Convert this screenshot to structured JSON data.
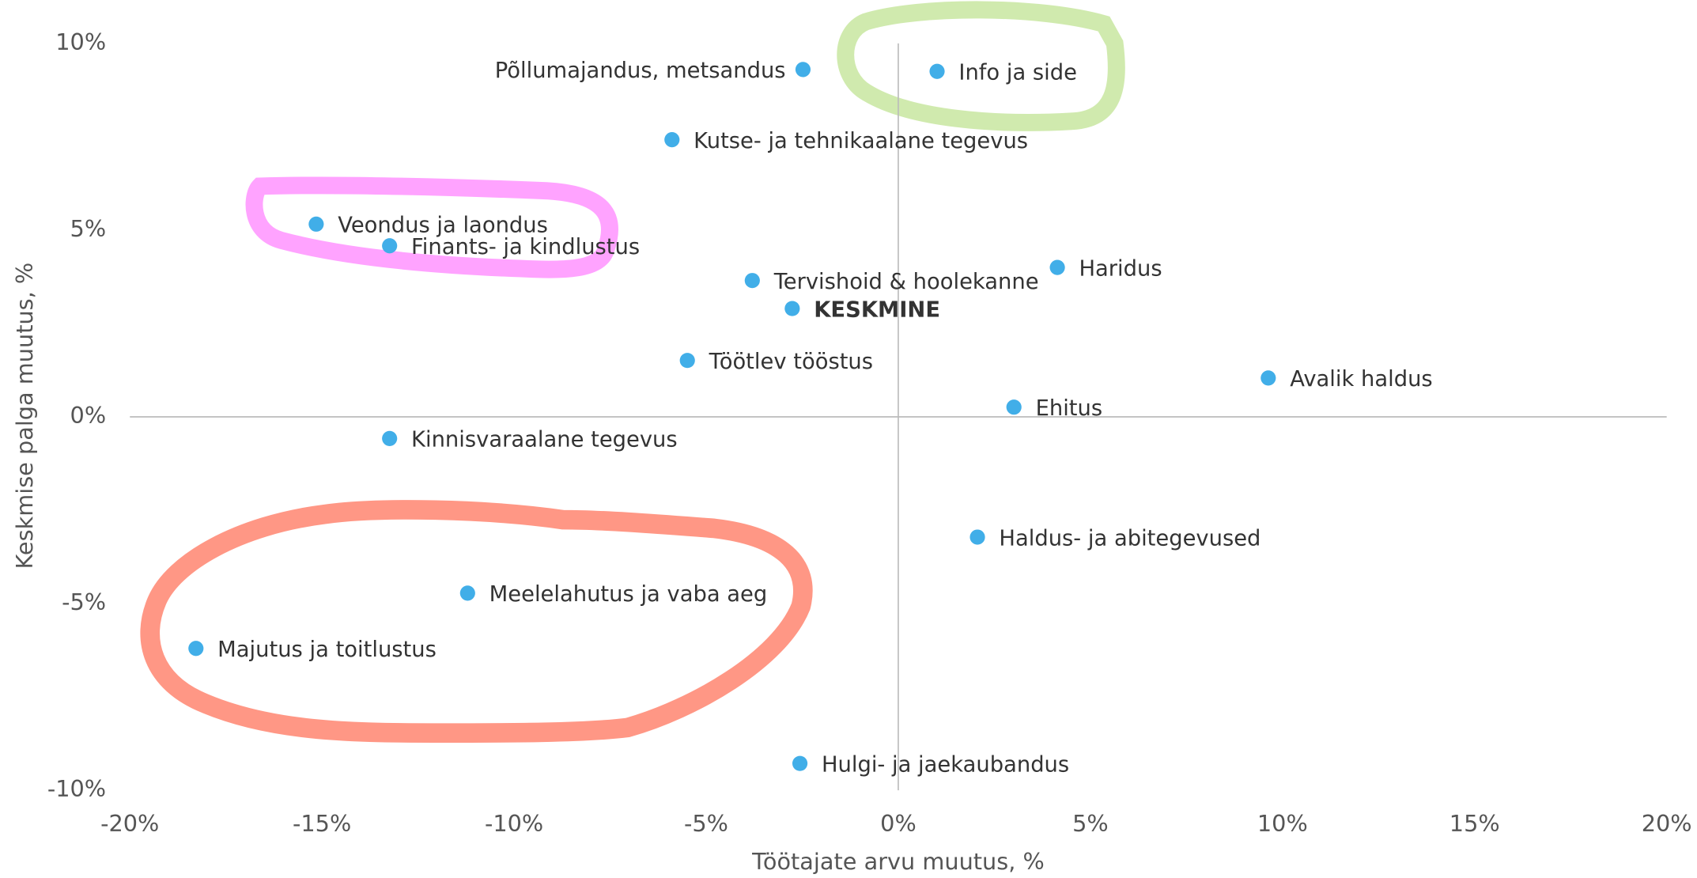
{
  "chart_data": {
    "type": "scatter",
    "xlabel": "Töötajate arvu muutus, %",
    "ylabel": "Keskmise palga muutus, %",
    "labels": [
      "Põllumajandus, metsandus",
      "Info ja side",
      "Kutse- ja tehnikaalane tegevus",
      "Veondus ja laondus",
      "Finants- ja kindlustus",
      "Tervishoid & hoolekanne",
      "Haridus",
      "KESKMINE",
      "Töötlev tööstus",
      "Avalik haldus",
      "Ehitus",
      "Kinnisvaraalane tegevus",
      "Haldus- ja abitegevused",
      "Meelelahutus ja vaba aeg",
      "Majutus ja toitlustus",
      "Hulgi- ja jaekaubandus"
    ],
    "x": [
      -2.48,
      1.01,
      -5.89,
      -15.15,
      -13.24,
      -3.8,
      4.14,
      -2.76,
      -5.49,
      9.63,
      3.01,
      -13.24,
      2.06,
      -11.21,
      -18.28,
      -2.56
    ],
    "values": [
      9.3,
      9.25,
      7.42,
      5.16,
      4.58,
      3.65,
      4.0,
      2.9,
      1.51,
      1.04,
      0.26,
      -0.58,
      -3.22,
      -4.72,
      -6.2,
      -9.28
    ],
    "highlight": 7,
    "color": "#41aee8",
    "xlim": [
      -20,
      20
    ],
    "xticks": [
      {
        "value": -20,
        "label": "-20%"
      },
      {
        "value": -15,
        "label": "-15%"
      },
      {
        "value": -10,
        "label": "-10%"
      },
      {
        "value": -5,
        "label": "-5%"
      },
      {
        "value": 0,
        "label": "0%"
      },
      {
        "value": 5,
        "label": "5%"
      },
      {
        "value": 10,
        "label": "10%"
      },
      {
        "value": 15,
        "label": "15%"
      },
      {
        "value": 20,
        "label": "20%"
      }
    ],
    "ylim": [
      -10,
      10
    ],
    "yticks": [
      {
        "value": -10,
        "label": "-10%"
      },
      {
        "value": -5,
        "label": "-5%"
      },
      {
        "value": 0,
        "label": "0%"
      },
      {
        "value": 5,
        "label": "5%"
      },
      {
        "value": 10,
        "label": "10%"
      }
    ]
  }
}
